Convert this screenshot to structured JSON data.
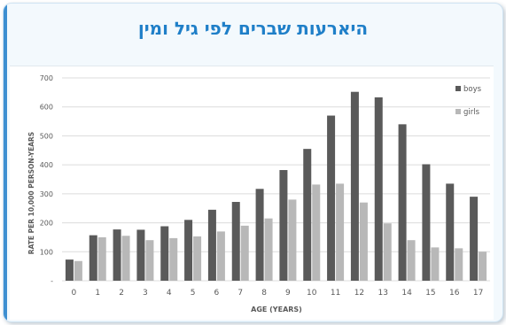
{
  "slide": {
    "title": "היארעות שברים לפי גיל ומין"
  },
  "colors": {
    "title": "#1f7fc8",
    "boys": "#5a5a5a",
    "girls": "#b8b8b8",
    "grid": "#dcdcdc",
    "text": "#595959"
  },
  "chart_data": {
    "type": "bar",
    "title": "",
    "xlabel": "AGE (YEARS)",
    "ylabel": "RATE PER 10,000 PERSON-YEARS",
    "ylim": [
      0,
      700
    ],
    "yticks": [
      0,
      100,
      200,
      300,
      400,
      500,
      600,
      700
    ],
    "ytick_labels": [
      "-",
      "100",
      "200",
      "300",
      "400",
      "500",
      "600",
      "700"
    ],
    "grid": true,
    "legend_position": "top-right",
    "categories": [
      "0",
      "1",
      "2",
      "3",
      "4",
      "5",
      "6",
      "7",
      "8",
      "9",
      "10",
      "11",
      "12",
      "13",
      "14",
      "15",
      "16",
      "17"
    ],
    "series": [
      {
        "name": "boys",
        "color": "#5a5a5a",
        "values": [
          73,
          157,
          177,
          176,
          188,
          210,
          245,
          272,
          317,
          382,
          455,
          570,
          652,
          633,
          540,
          402,
          335,
          290
        ]
      },
      {
        "name": "girls",
        "color": "#b8b8b8",
        "values": [
          68,
          150,
          155,
          140,
          147,
          153,
          170,
          190,
          215,
          280,
          332,
          335,
          270,
          198,
          140,
          115,
          112,
          100
        ]
      }
    ]
  }
}
